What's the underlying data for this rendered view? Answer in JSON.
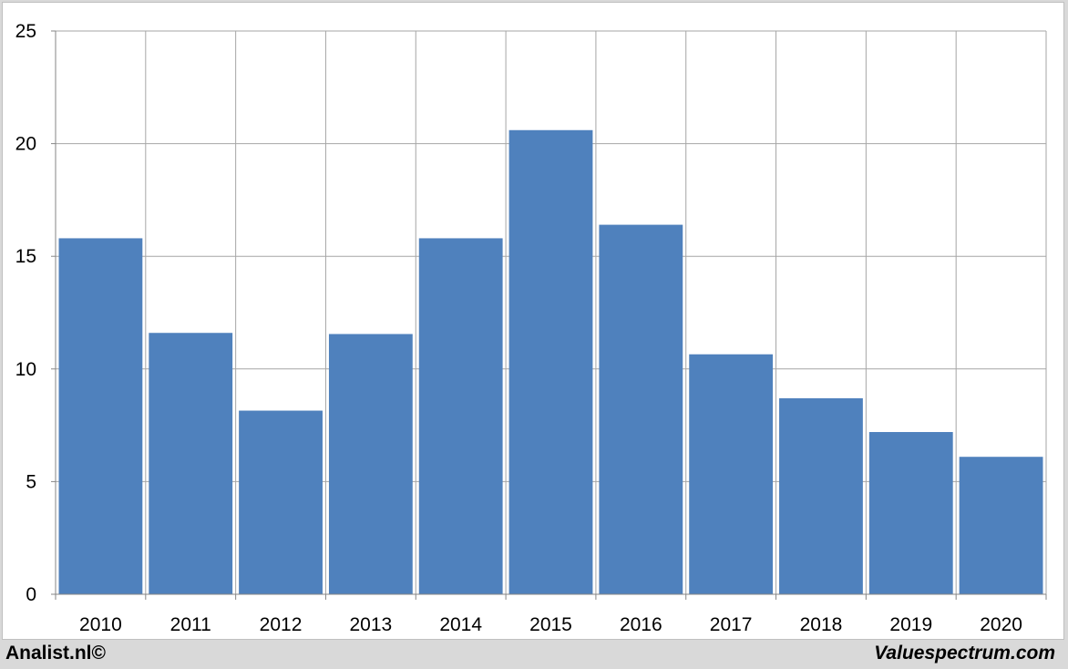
{
  "chart_data": {
    "type": "bar",
    "categories": [
      "2010",
      "2011",
      "2012",
      "2013",
      "2014",
      "2015",
      "2016",
      "2017",
      "2018",
      "2019",
      "2020"
    ],
    "values": [
      15.8,
      11.6,
      8.15,
      11.55,
      15.8,
      20.6,
      16.4,
      10.65,
      8.7,
      7.2,
      6.1
    ],
    "title": "",
    "xlabel": "",
    "ylabel": "",
    "ylim": [
      0,
      25
    ],
    "yticks": [
      "0",
      "5",
      "10",
      "15",
      "20",
      "25"
    ],
    "grid": true,
    "bar_color": "#4f81bd",
    "grid_color": "#a6a6a6"
  },
  "footer": {
    "left": "Analist.nl©",
    "right": "Valuespectrum.com"
  }
}
